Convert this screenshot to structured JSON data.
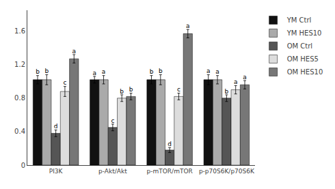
{
  "chart_data": {
    "type": "bar",
    "categories": [
      "PI3K",
      "p-Akt/Akt",
      "p-mTOR/mTOR",
      "p-p70S6K/p70S6K"
    ],
    "series": [
      {
        "name": "YM Ctrl",
        "color": "#111111",
        "values": [
          1.02,
          1.02,
          1.02,
          1.02
        ],
        "errors": [
          0.05,
          0.04,
          0.05,
          0.06
        ],
        "labels": [
          "b",
          "a",
          "b",
          "a"
        ]
      },
      {
        "name": "YM HES10",
        "color": "#aaaaaa",
        "values": [
          1.02,
          1.02,
          1.02,
          1.02
        ],
        "errors": [
          0.06,
          0.05,
          0.06,
          0.05
        ],
        "labels": [
          "b",
          "a",
          "b",
          "a"
        ]
      },
      {
        "name": "OM Ctrl",
        "color": "#555555",
        "values": [
          0.38,
          0.45,
          0.18,
          0.8
        ],
        "errors": [
          0.04,
          0.04,
          0.03,
          0.04
        ],
        "labels": [
          "d",
          "c",
          "d",
          "b"
        ]
      },
      {
        "name": "OM HES5",
        "color": "#dddddd",
        "values": [
          0.88,
          0.8,
          0.82,
          0.9
        ],
        "errors": [
          0.06,
          0.04,
          0.04,
          0.05
        ],
        "labels": [
          "c",
          "b",
          "c",
          "a"
        ]
      },
      {
        "name": "OM HES10",
        "color": "#777777",
        "values": [
          1.27,
          0.82,
          1.57,
          0.96
        ],
        "errors": [
          0.05,
          0.04,
          0.05,
          0.05
        ],
        "labels": [
          "a",
          "b",
          "a",
          "a"
        ]
      }
    ],
    "ylim": [
      0,
      1.85
    ],
    "yticks": [
      0,
      0.4,
      0.8,
      1.2,
      1.6
    ],
    "grid": false,
    "legend": "right"
  }
}
